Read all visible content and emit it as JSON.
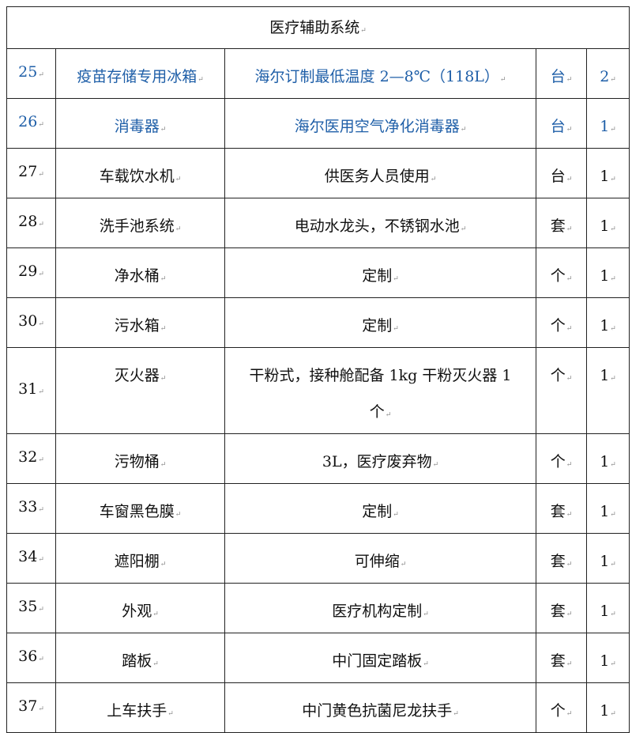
{
  "section_title": "医疗辅助系统",
  "colors": {
    "highlight_text": "#1f5fa8",
    "text": "#111111",
    "border": "#222222"
  },
  "rows": [
    {
      "no": "25",
      "name": "疫苗存储专用冰箱",
      "spec": "海尔订制最低温度 2—8℃（118L）",
      "unit": "台",
      "qty": "2",
      "highlight": true
    },
    {
      "no": "26",
      "name": "消毒器",
      "spec": "海尔医用空气净化消毒器",
      "unit": "台",
      "qty": "1",
      "highlight": true
    },
    {
      "no": "27",
      "name": "车载饮水机",
      "spec": "供医务人员使用",
      "unit": "台",
      "qty": "1"
    },
    {
      "no": "28",
      "name": "洗手池系统",
      "spec": "电动水龙头，不锈钢水池",
      "unit": "套",
      "qty": "1"
    },
    {
      "no": "29",
      "name": "净水桶",
      "spec": "定制",
      "unit": "个",
      "qty": "1"
    },
    {
      "no": "30",
      "name": "污水箱",
      "spec": "定制",
      "unit": "个",
      "qty": "1"
    },
    {
      "no": "31",
      "name": "灭火器",
      "spec": "干粉式，接种舱配备 1kg 干粉灭火器 1 个",
      "unit": "个",
      "qty": "1"
    },
    {
      "no": "32",
      "name": "污物桶",
      "spec": "3L，医疗废弃物",
      "unit": "个",
      "qty": "1"
    },
    {
      "no": "33",
      "name": "车窗黑色膜",
      "spec": "定制",
      "unit": "套",
      "qty": "1"
    },
    {
      "no": "34",
      "name": "遮阳棚",
      "spec": "可伸缩",
      "unit": "套",
      "qty": "1"
    },
    {
      "no": "35",
      "name": "外观",
      "spec": "医疗机构定制",
      "unit": "套",
      "qty": "1"
    },
    {
      "no": "36",
      "name": "踏板",
      "spec": "中门固定踏板",
      "unit": "套",
      "qty": "1"
    },
    {
      "no": "37",
      "name": "上车扶手",
      "spec": "中门黄色抗菌尼龙扶手",
      "unit": "个",
      "qty": "1"
    }
  ]
}
